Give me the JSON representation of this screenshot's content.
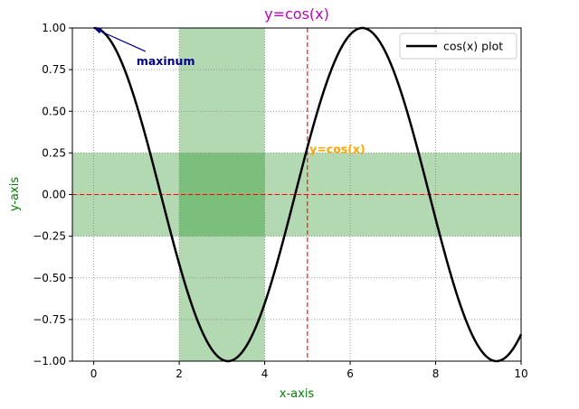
{
  "chart_data": {
    "type": "line",
    "title": "y=cos(x)",
    "title_color": "#bf00bf",
    "xlabel": "x-axis",
    "ylabel": "y-axis",
    "label_color": "#008000",
    "xlim": [
      -0.5,
      10
    ],
    "ylim": [
      -1,
      1
    ],
    "xticks": [
      0,
      2,
      4,
      6,
      8,
      10
    ],
    "xtick_labels": [
      "0",
      "2",
      "4",
      "6",
      "8",
      "10"
    ],
    "yticks": [
      -1,
      -0.75,
      -0.5,
      -0.25,
      0,
      0.25,
      0.5,
      0.75,
      1
    ],
    "ytick_labels": [
      "−1.00",
      "−0.75",
      "−0.50",
      "−0.25",
      "0.00",
      "0.25",
      "0.50",
      "0.75",
      "1.00"
    ],
    "grid": "dotted",
    "legend_position": "top-right",
    "series": [
      {
        "name": "cos(x) plot",
        "function": "cos(x)",
        "x_range": [
          0,
          10
        ],
        "color": "#000000",
        "sample_points": [
          [
            0,
            1
          ],
          [
            1.571,
            0
          ],
          [
            3.142,
            -1
          ],
          [
            4.712,
            0
          ],
          [
            6.283,
            1
          ],
          [
            7.854,
            0
          ],
          [
            9.425,
            -1
          ],
          [
            10,
            -0.839
          ]
        ]
      }
    ],
    "vertical_span": {
      "x": [
        2,
        4
      ],
      "color": "#008000",
      "opacity": 0.3
    },
    "horizontal_span": {
      "y": [
        -0.25,
        0.25
      ],
      "color": "#008000",
      "opacity": 0.3
    },
    "vertical_line": {
      "x": 5,
      "color": "#ff0000",
      "style": "dashed"
    },
    "horizontal_line": {
      "y": 0,
      "color": "#ff0000",
      "style": "dashed"
    },
    "annotations": [
      {
        "text": "maxinum",
        "x": 1,
        "y": 0.8,
        "color": "#00008b",
        "bold": true,
        "arrow_to": [
          0,
          1
        ]
      },
      {
        "text": "y=cos(x)",
        "x": 5.05,
        "y": 0.27,
        "color": "#ffa500",
        "bold": true
      }
    ]
  }
}
